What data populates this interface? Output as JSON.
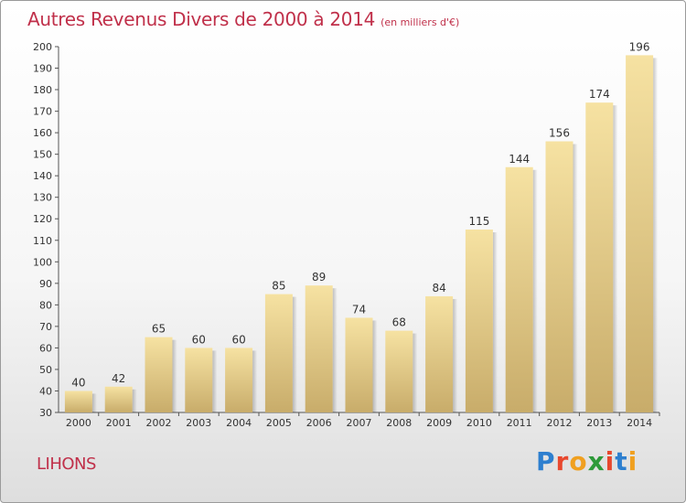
{
  "header": {
    "title": "Autres Revenus Divers de 2000 à 2014",
    "unit": "(en milliers d'€)"
  },
  "footer": {
    "place": "LIHONS",
    "logo_letters": [
      "P",
      "r",
      "o",
      "x",
      "i",
      "t",
      "i"
    ],
    "logo_colors": [
      "#2e7fcf",
      "#e8482e",
      "#f0a020",
      "#2e9a3a",
      "#e8482e",
      "#2e7fcf",
      "#f0a020"
    ]
  },
  "colors": {
    "bar_light": "#f6e2a2",
    "bar_dark": "#c8ac6a",
    "accent": "#c0304a"
  },
  "chart_data": {
    "type": "bar",
    "title": "Autres Revenus Divers de 2000 à 2014",
    "xlabel": "",
    "ylabel": "",
    "categories": [
      "2000",
      "2001",
      "2002",
      "2003",
      "2004",
      "2005",
      "2006",
      "2007",
      "2008",
      "2009",
      "2010",
      "2011",
      "2012",
      "2013",
      "2014"
    ],
    "values": [
      40,
      42,
      65,
      60,
      60,
      85,
      89,
      74,
      68,
      84,
      115,
      144,
      156,
      174,
      196
    ],
    "ylim": [
      30,
      200
    ],
    "ytick_step": 10,
    "grid": false,
    "legend": "none"
  }
}
